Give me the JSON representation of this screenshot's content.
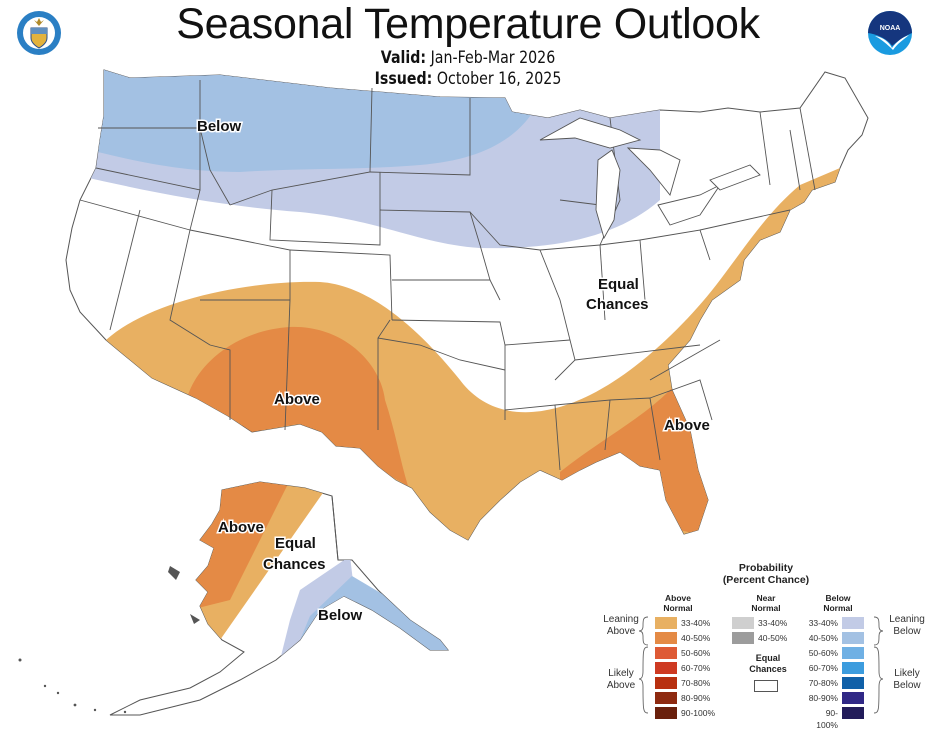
{
  "header": {
    "title": "Seasonal Temperature Outlook",
    "valid_label": "Valid:",
    "valid_value": "Jan-Feb-Mar 2026",
    "issued_label": "Issued:",
    "issued_value": "October 16, 2025"
  },
  "logos": {
    "left": "department-of-commerce-seal",
    "right": "noaa-logo",
    "right_text": "NOAA"
  },
  "map": {
    "region_labels": {
      "conus_below": "Below",
      "conus_above_sw": "Above",
      "conus_above_se": "Above",
      "conus_equal_1": "Equal",
      "conus_equal_2": "Chances",
      "ak_above": "Above",
      "ak_equal_1": "Equal",
      "ak_equal_2": "Chances",
      "ak_below": "Below"
    },
    "colors": {
      "above_33_40": "#E8B062",
      "above_40_50": "#E48A45",
      "below_33_40": "#C2CBE6",
      "below_40_50": "#A3C1E3",
      "equal_chances": "#FFFFFF",
      "border": "#555555"
    }
  },
  "legend": {
    "title_1": "Probability",
    "title_2": "(Percent Chance)",
    "above_header_1": "Above",
    "above_header_2": "Normal",
    "near_header_1": "Near",
    "near_header_2": "Normal",
    "below_header_1": "Below",
    "below_header_2": "Normal",
    "leaning_above_1": "Leaning",
    "leaning_above_2": "Above",
    "likely_above_1": "Likely",
    "likely_above_2": "Above",
    "leaning_below_1": "Leaning",
    "leaning_below_2": "Below",
    "likely_below_1": "Likely",
    "likely_below_2": "Below",
    "equal_1": "Equal",
    "equal_2": "Chances",
    "above": [
      {
        "range": "33-40%",
        "color": "#E8B062"
      },
      {
        "range": "40-50%",
        "color": "#E48A45"
      },
      {
        "range": "50-60%",
        "color": "#DE5A35"
      },
      {
        "range": "60-70%",
        "color": "#CE3A22"
      },
      {
        "range": "70-80%",
        "color": "#B83010"
      },
      {
        "range": "80-90%",
        "color": "#8E2A10"
      },
      {
        "range": "90-100%",
        "color": "#6A200C"
      }
    ],
    "near": [
      {
        "range": "33-40%",
        "color": "#CFCFCF"
      },
      {
        "range": "40-50%",
        "color": "#9C9C9C"
      }
    ],
    "below": [
      {
        "range": "33-40%",
        "color": "#C2CBE6"
      },
      {
        "range": "40-50%",
        "color": "#A3C1E3"
      },
      {
        "range": "50-60%",
        "color": "#6FB0E4"
      },
      {
        "range": "60-70%",
        "color": "#3C9CDE"
      },
      {
        "range": "70-80%",
        "color": "#1060A8"
      },
      {
        "range": "80-90%",
        "color": "#302886"
      },
      {
        "range": "90-100%",
        "color": "#221C5A"
      }
    ]
  }
}
